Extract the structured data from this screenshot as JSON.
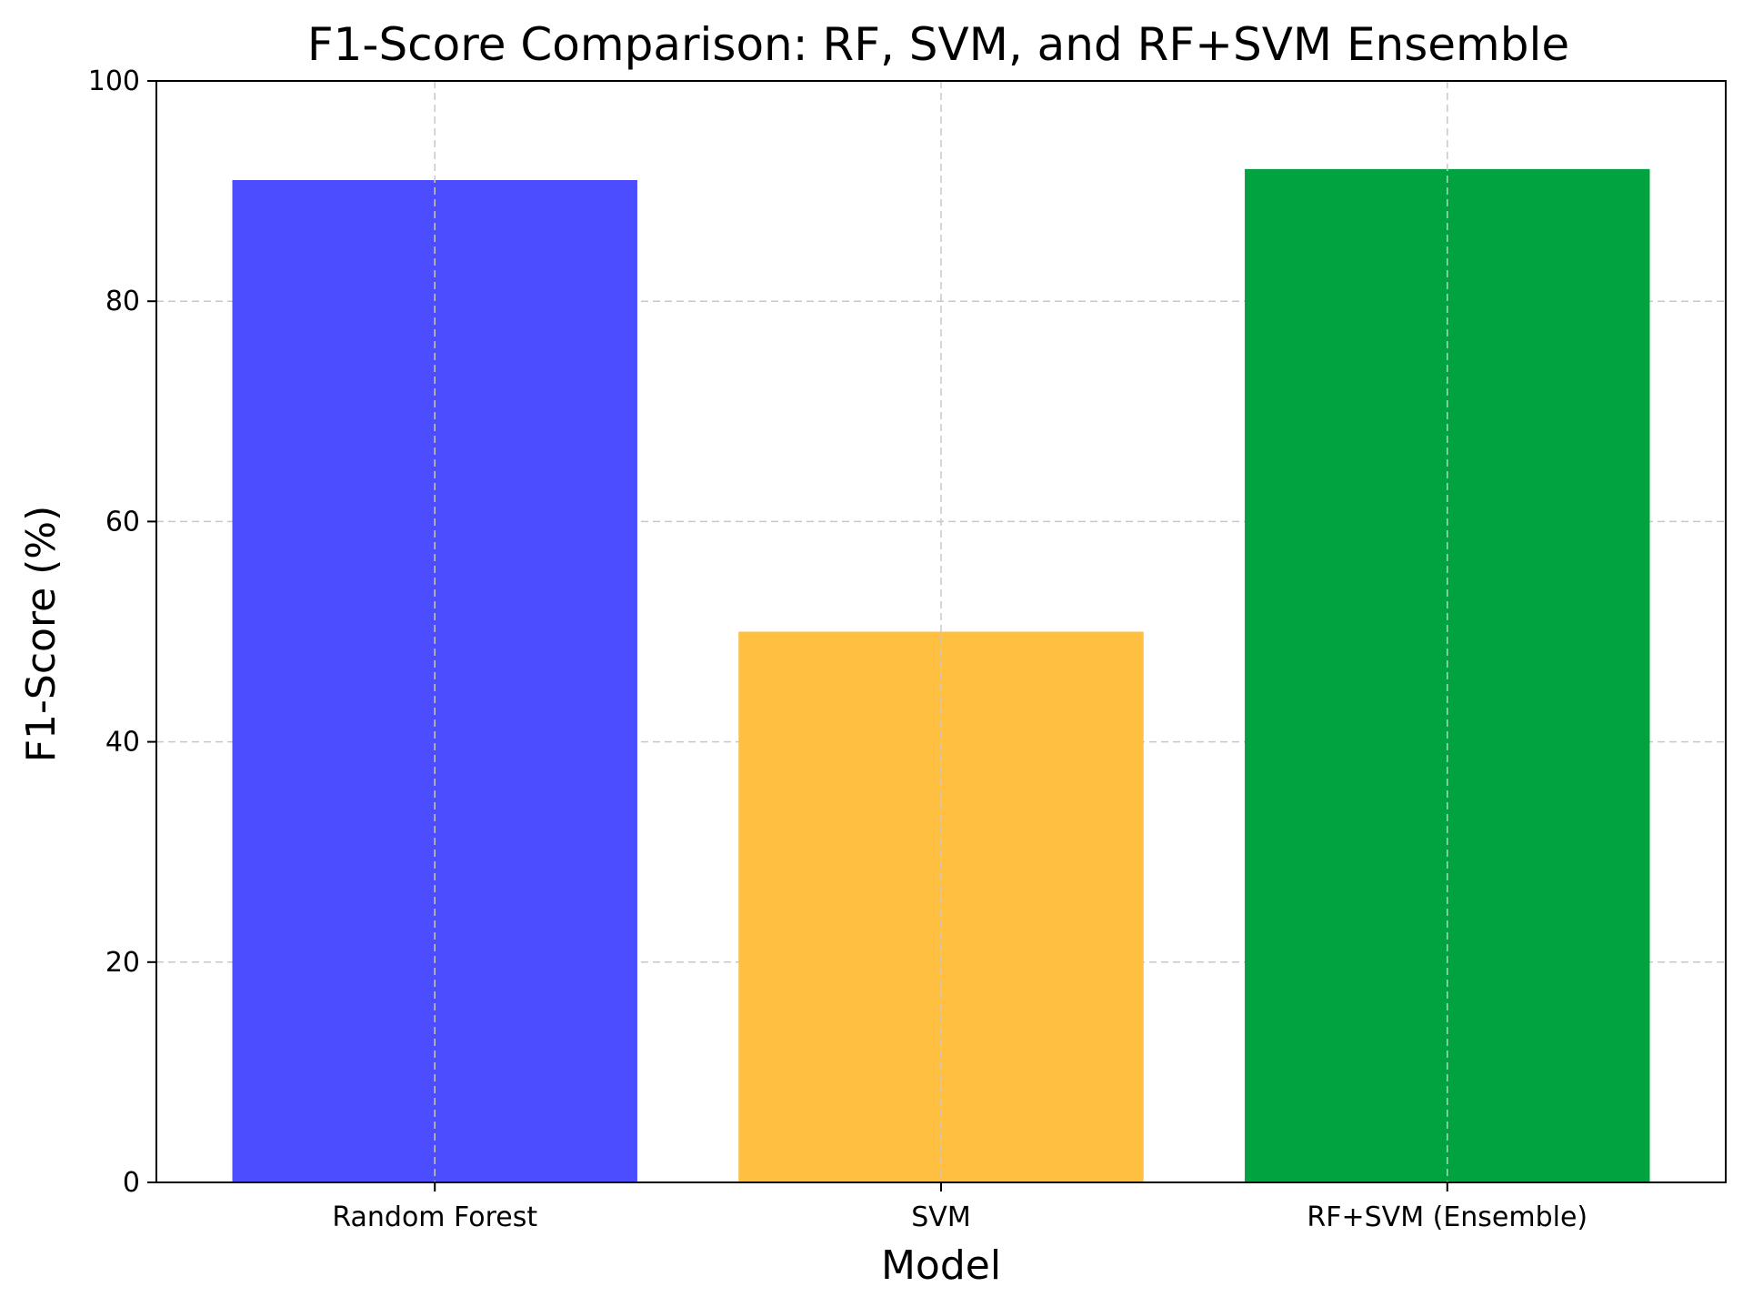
{
  "chart_data": {
    "type": "bar",
    "title": "F1-Score Comparison: RF, SVM, and RF+SVM Ensemble",
    "xlabel": "Model",
    "ylabel": "F1-Score (%)",
    "categories": [
      "Random Forest",
      "SVM",
      "RF+SVM (Ensemble)"
    ],
    "values": [
      91,
      50,
      92
    ],
    "colors": [
      "#4b4dff",
      "#ffbf40",
      "#00a340"
    ],
    "ylim": [
      0,
      100
    ],
    "yticks": [
      0,
      20,
      40,
      60,
      80,
      100
    ],
    "grid": true,
    "grid_style": "dashed",
    "grid_color": "#c8c8c8"
  }
}
